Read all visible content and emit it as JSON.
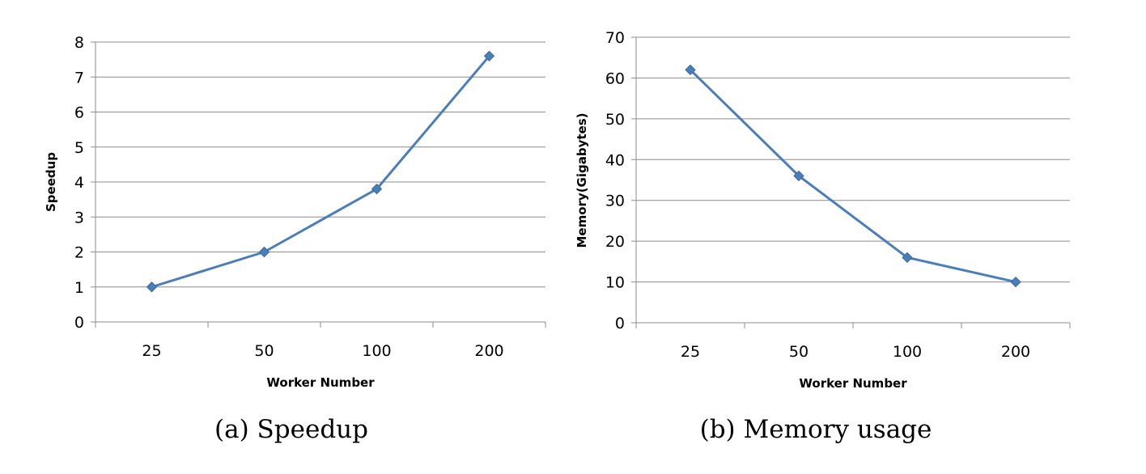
{
  "chart_data": [
    {
      "type": "line",
      "categories": [
        "25",
        "50",
        "100",
        "200"
      ],
      "series": [
        {
          "values": [
            1,
            2,
            3.8,
            7.6
          ]
        }
      ],
      "xlabel": "Worker Number",
      "ylabel": "Speedup",
      "ylim": [
        0,
        8
      ],
      "yticks": [
        "0",
        "1",
        "2",
        "3",
        "4",
        "5",
        "6",
        "7",
        "8"
      ],
      "grid": true,
      "line_color": "#4a7ebb",
      "marker": "diamond",
      "caption": "(a)  Speedup"
    },
    {
      "type": "line",
      "categories": [
        "25",
        "50",
        "100",
        "200"
      ],
      "series": [
        {
          "values": [
            62,
            36,
            16,
            10
          ]
        }
      ],
      "xlabel": "Worker Number",
      "ylabel": "Memory(Gigabytes)",
      "ylim": [
        0,
        70
      ],
      "yticks": [
        "0",
        "10",
        "20",
        "30",
        "40",
        "50",
        "60",
        "70"
      ],
      "grid": true,
      "line_color": "#4a7ebb",
      "marker": "diamond",
      "caption": "(b)  Memory usage"
    }
  ]
}
